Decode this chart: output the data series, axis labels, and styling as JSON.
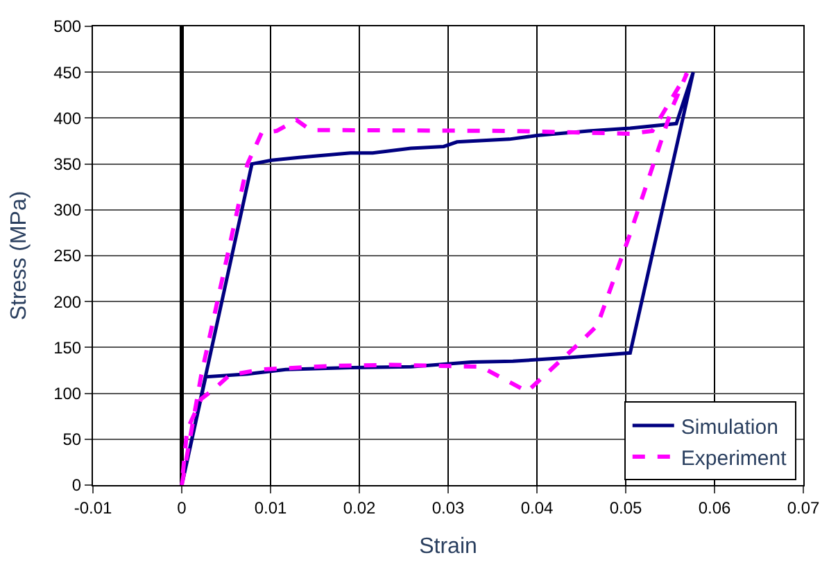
{
  "chart_data": {
    "type": "line",
    "xlabel": "Strain",
    "ylabel": "Stress (MPa)",
    "xlim": [
      -0.01,
      0.07
    ],
    "xticks": [
      -0.01,
      0,
      0.01,
      0.02,
      0.03,
      0.04,
      0.05,
      0.06,
      0.07
    ],
    "ylim": [
      0,
      500
    ],
    "yticks": [
      0,
      50,
      100,
      150,
      200,
      250,
      300,
      350,
      400,
      450,
      500
    ],
    "grid": true,
    "legend": "bottom right",
    "marker": "none",
    "series": [
      {
        "name": "Simulation",
        "color": "#000080",
        "line_style": "solid",
        "x": [
          0,
          0.0079,
          0.0101,
          0.0132,
          0.019,
          0.0215,
          0.0258,
          0.0295,
          0.031,
          0.0369,
          0.04,
          0.0458,
          0.0505,
          0.0557,
          0.0576,
          0.0505,
          0.0436,
          0.0373,
          0.0326,
          0.0258,
          0.019,
          0.0117,
          0.0074,
          0.0027,
          0.0001
        ],
        "values": [
          0,
          350,
          354,
          357,
          362,
          362,
          367,
          369,
          374,
          377,
          381,
          386,
          389,
          394,
          450,
          144,
          139,
          135,
          134,
          129,
          128,
          126,
          121,
          118,
          4
        ]
      },
      {
        "name": "Experiment",
        "color": "#ff00ff",
        "line_style": "dashed",
        "x": [
          0,
          0.0022,
          0.0074,
          0.009,
          0.0107,
          0.0129,
          0.0145,
          0.0369,
          0.0505,
          0.053,
          0.0569,
          0.0553,
          0.0505,
          0.0468,
          0.0447,
          0.0389,
          0.0337,
          0.0236,
          0.0172,
          0.009,
          0.0054,
          0.0038,
          0.0022,
          0.0006,
          0.0001
        ],
        "values": [
          0,
          120,
          350,
          384,
          386,
          398,
          387,
          386,
          383,
          386,
          449,
          413,
          274,
          174,
          154,
          102,
          129,
          131,
          130,
          126,
          120,
          106,
          94,
          60,
          10
        ]
      }
    ]
  }
}
